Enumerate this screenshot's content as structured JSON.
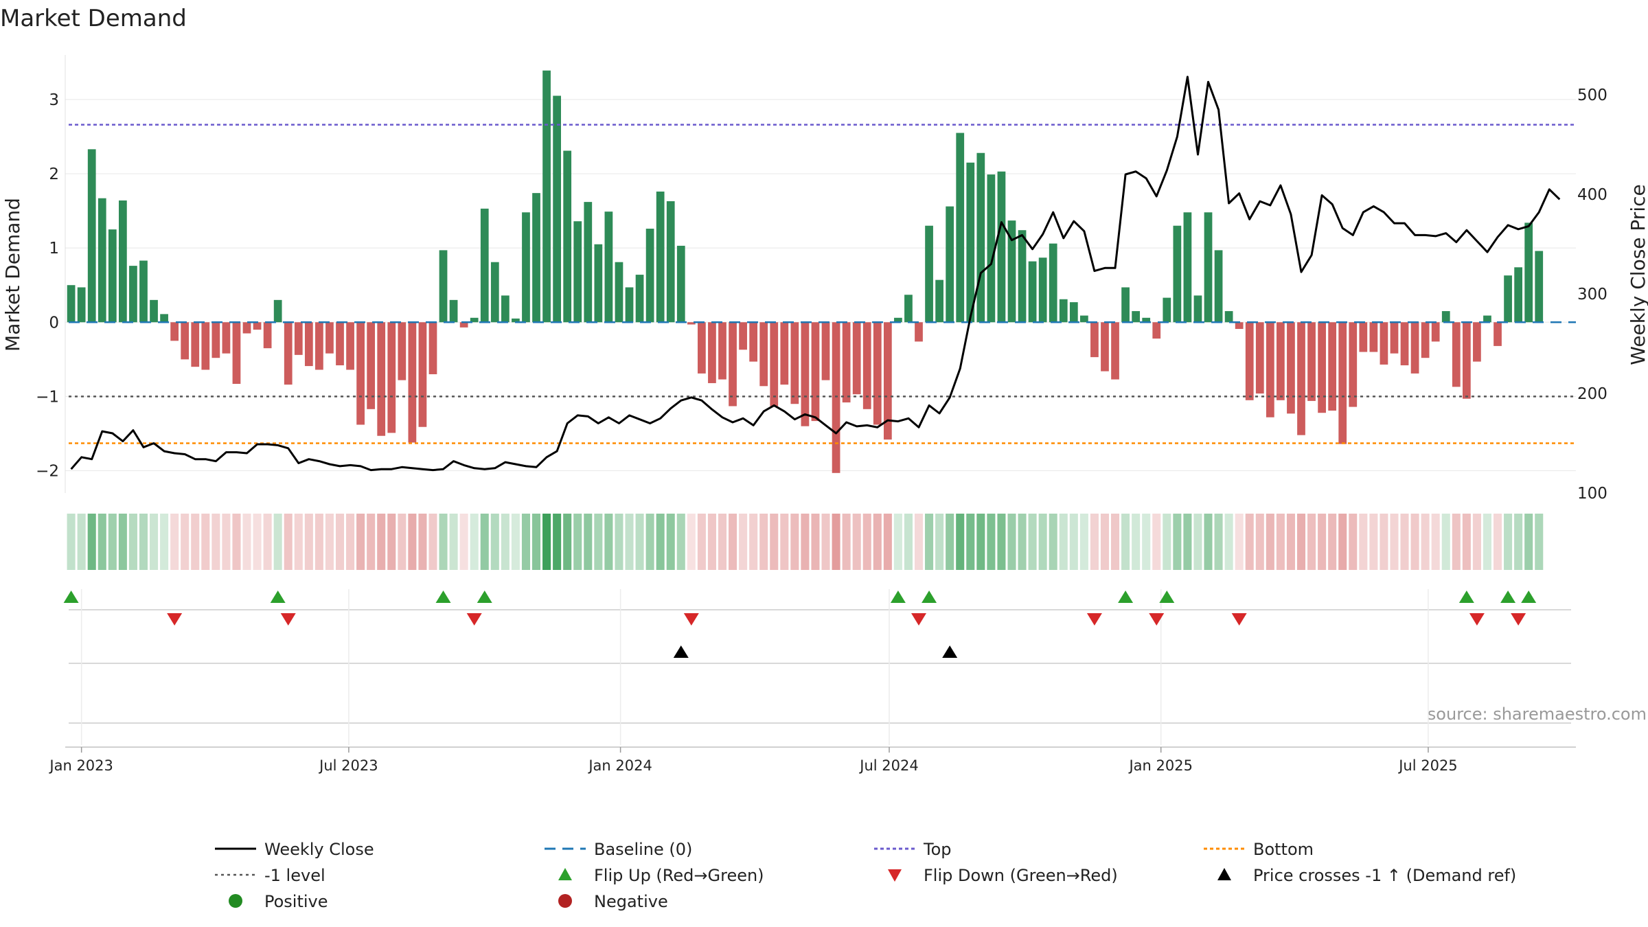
{
  "chart_data": {
    "type": "bar",
    "title": "Market Demand",
    "ylabel": "Market Demand",
    "y2label": "Weekly Close Price",
    "ylim": [
      -2.3,
      3.6
    ],
    "y2lim": [
      100,
      540
    ],
    "yticks": [
      -2,
      -1,
      0,
      1,
      2,
      3
    ],
    "ytick_labels": [
      "−2",
      "−1",
      "0",
      "1",
      "2",
      "3"
    ],
    "y2ticks": [
      100,
      200,
      300,
      400,
      500
    ],
    "y2tick_labels": [
      "100",
      "200",
      "300",
      "400",
      "500"
    ],
    "x_start": "2022-12-21",
    "x_end": "2025-10-09",
    "xticks": [
      "2023-01-01",
      "2023-07-01",
      "2024-01-01",
      "2024-07-01",
      "2025-01-01",
      "2025-07-01"
    ],
    "xtick_labels": [
      "Jan 2023",
      "Jul 2023",
      "Jan 2024",
      "Jul 2024",
      "Jan 2025",
      "Jul 2025"
    ],
    "first_week": "2022-12-25",
    "levels": {
      "top": 2.66,
      "minus_one": -1,
      "bottom": -1.63,
      "baseline": 0
    },
    "demand": [
      0.5,
      0.47,
      2.33,
      1.67,
      1.25,
      1.64,
      0.76,
      0.83,
      0.3,
      0.11,
      -0.25,
      -0.5,
      -0.6,
      -0.64,
      -0.48,
      -0.42,
      -0.83,
      -0.15,
      -0.1,
      -0.35,
      0.3,
      -0.84,
      -0.44,
      -0.59,
      -0.64,
      -0.42,
      -0.58,
      -0.64,
      -1.38,
      -1.17,
      -1.53,
      -1.49,
      -0.78,
      -1.62,
      -1.41,
      -0.7,
      0.97,
      0.3,
      -0.07,
      0.06,
      1.53,
      0.81,
      0.36,
      0.05,
      1.48,
      1.74,
      3.39,
      3.05,
      2.31,
      1.36,
      1.62,
      1.05,
      1.49,
      0.81,
      0.47,
      0.64,
      1.26,
      1.76,
      1.63,
      1.03,
      -0.03,
      -0.69,
      -0.82,
      -0.77,
      -1.13,
      -0.37,
      -0.53,
      -0.86,
      -1.13,
      -0.84,
      -1.1,
      -1.4,
      -1.33,
      -0.78,
      -2.03,
      -1.08,
      -0.97,
      -1.17,
      -1.38,
      -1.58,
      0.06,
      0.37,
      -0.26,
      1.3,
      0.57,
      1.56,
      2.55,
      2.15,
      2.28,
      1.99,
      2.03,
      1.37,
      1.24,
      0.82,
      0.87,
      1.06,
      0.31,
      0.27,
      0.09,
      -0.47,
      -0.66,
      -0.77,
      0.47,
      0.15,
      0.06,
      -0.22,
      0.33,
      1.3,
      1.48,
      0.36,
      1.48,
      0.97,
      0.15,
      -0.09,
      -1.05,
      -0.96,
      -1.28,
      -1.05,
      -1.23,
      -1.52,
      -1.06,
      -1.22,
      -1.19,
      -1.64,
      -1.14,
      -0.4,
      -0.4,
      -0.57,
      -0.42,
      -0.58,
      -0.69,
      -0.48,
      -0.26,
      0.15,
      -0.87,
      -1.03,
      -0.53,
      0.09,
      -0.32,
      0.63,
      0.74,
      1.34,
      0.96
    ],
    "price": [
      124,
      136,
      134,
      162,
      160,
      152,
      163,
      146,
      150,
      142,
      140,
      139,
      134,
      134,
      132,
      141,
      141,
      140,
      149,
      149,
      148,
      145,
      130,
      134,
      132,
      129,
      127,
      128,
      127,
      123,
      124,
      124,
      126,
      125,
      124,
      123,
      124,
      132,
      128,
      125,
      124,
      125,
      131,
      129,
      127,
      126,
      136,
      142,
      170,
      178,
      177,
      170,
      176,
      170,
      178,
      174,
      170,
      175,
      185,
      193,
      196,
      193,
      184,
      176,
      171,
      175,
      168,
      182,
      188,
      182,
      174,
      179,
      176,
      168,
      160,
      171,
      167,
      168,
      166,
      173,
      172,
      175,
      166,
      188,
      180,
      196,
      225,
      277,
      321,
      330,
      372,
      354,
      359,
      345,
      360,
      382,
      356,
      373,
      363,
      323,
      326,
      326,
      420,
      423,
      416,
      398,
      424,
      458,
      518,
      440,
      513,
      485,
      391,
      401,
      375,
      393,
      389,
      409,
      380,
      322,
      339,
      399,
      390,
      366,
      359,
      382,
      388,
      382,
      371,
      371,
      359,
      359,
      358,
      361,
      352,
      364,
      353,
      342,
      357,
      369,
      365,
      368,
      382,
      405,
      395
    ],
    "flip_up_weeks": [
      0,
      20,
      36,
      40,
      80,
      83,
      102,
      106,
      135,
      139,
      141
    ],
    "flip_down_weeks": [
      10,
      21,
      39,
      60,
      82,
      99,
      105,
      113,
      136,
      140
    ],
    "price_cross_weeks": [
      59,
      85
    ],
    "source": "source: sharemaestro.com"
  },
  "legend": {
    "weekly_close": "Weekly Close",
    "baseline": "Baseline (0)",
    "top": "Top",
    "bottom": "Bottom",
    "minus_one": "-1 level",
    "flip_up": "Flip Up (Red→Green)",
    "flip_down": "Flip Down (Green→Red)",
    "price_cross": "Price crosses -1 ↑ (Demand ref)",
    "positive": "Positive",
    "negative": "Negative"
  },
  "colors": {
    "green": "#2e8b57",
    "red": "#cd5c5c",
    "price_line": "#000000",
    "baseline": "#1f77b4",
    "top": "#6a5acd",
    "bottom": "#ff8c00",
    "minus_one": "#555555",
    "flip_up": "#2ca02c",
    "flip_down": "#d62728",
    "cross": "#000000",
    "positive_dot": "#228b22",
    "negative_dot": "#b22222"
  }
}
